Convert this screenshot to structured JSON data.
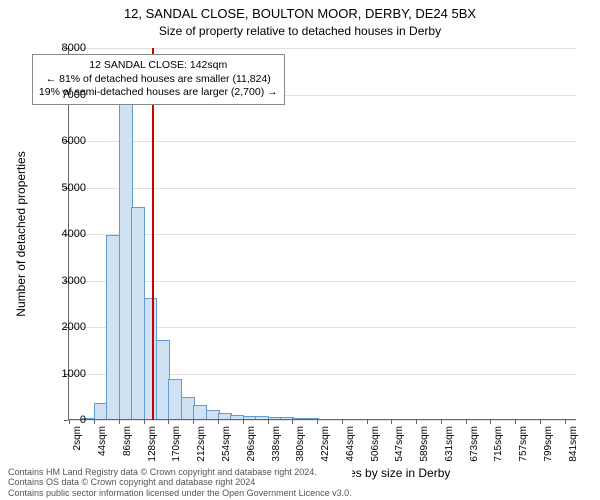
{
  "title_main": "12, SANDAL CLOSE, BOULTON MOOR, DERBY, DE24 5BX",
  "title_sub": "Size of property relative to detached houses in Derby",
  "ylabel": "Number of detached properties",
  "xlabel": "Distribution of detached houses by size in Derby",
  "footer_line1": "Contains HM Land Registry data © Crown copyright and database right 2024.",
  "footer_line2": "Contains OS data © Crown copyright and database right 2024",
  "footer_line3": "Contains public sector information licensed under the Open Government Licence v3.0.",
  "callout": {
    "line1": "12 SANDAL CLOSE: 142sqm",
    "line2": "← 81% of detached houses are smaller (11,824)",
    "line3": "19% of semi-detached houses are larger (2,700) →"
  },
  "histogram": {
    "type": "histogram",
    "bar_fill": "#cfe2f3",
    "bar_stroke": "#6699cc",
    "bar_stroke_width": 1,
    "background_color": "#ffffff",
    "grid_color": "#e0e0e0",
    "axis_color": "#666666",
    "refline_color": "#cc0000",
    "refline_x": 142,
    "xlim": [
      0,
      860
    ],
    "ylim": [
      0,
      8000
    ],
    "ytick_step": 1000,
    "xtick_values": [
      2,
      44,
      86,
      128,
      170,
      212,
      254,
      296,
      338,
      380,
      422,
      464,
      506,
      547,
      589,
      631,
      673,
      715,
      757,
      799,
      841
    ],
    "xtick_suffix": "sqm",
    "bin_width": 21,
    "bins": [
      {
        "x": 2,
        "count": 0
      },
      {
        "x": 23,
        "count": 20
      },
      {
        "x": 44,
        "count": 350
      },
      {
        "x": 65,
        "count": 3950
      },
      {
        "x": 86,
        "count": 6800
      },
      {
        "x": 107,
        "count": 4550
      },
      {
        "x": 128,
        "count": 2600
      },
      {
        "x": 149,
        "count": 1700
      },
      {
        "x": 170,
        "count": 850
      },
      {
        "x": 191,
        "count": 480
      },
      {
        "x": 212,
        "count": 300
      },
      {
        "x": 233,
        "count": 200
      },
      {
        "x": 254,
        "count": 140
      },
      {
        "x": 275,
        "count": 90
      },
      {
        "x": 296,
        "count": 70
      },
      {
        "x": 317,
        "count": 60
      },
      {
        "x": 338,
        "count": 45
      },
      {
        "x": 359,
        "count": 35
      },
      {
        "x": 380,
        "count": 25
      },
      {
        "x": 401,
        "count": 15
      },
      {
        "x": 422,
        "count": 10
      },
      {
        "x": 443,
        "count": 5
      },
      {
        "x": 464,
        "count": 3
      },
      {
        "x": 485,
        "count": 2
      }
    ],
    "title_fontsize": 13,
    "subtitle_fontsize": 12,
    "label_fontsize": 12,
    "tick_fontsize": 11,
    "callout_fontsize": 10.5
  }
}
